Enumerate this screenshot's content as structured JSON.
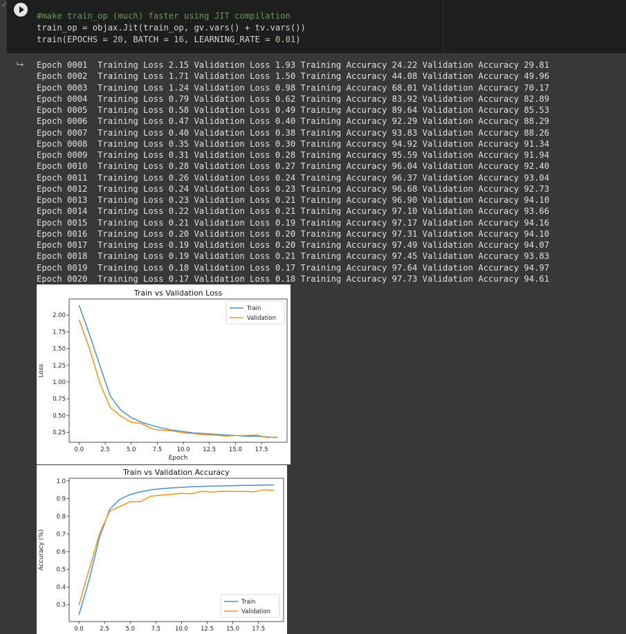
{
  "cell": {
    "code_lines": [
      {
        "type": "comment",
        "text": "#make train_op (much) faster using JIT compilation"
      },
      {
        "type": "code",
        "text": "train_op = objax.Jit(train_op, gv.vars() + tv.vars())"
      },
      {
        "type": "code_call",
        "prefix": "train(EPOCHS = ",
        "e": "20",
        ", BATCH = ": "",
        "b": "16",
        "lr": "0.01"
      }
    ],
    "line1": "#make train_op (much) faster using JIT compilation",
    "line2": "train_op = objax.Jit(train_op, gv.vars() + tv.vars())",
    "line3_a": "train(EPOCHS = ",
    "line3_b": "20",
    "line3_c": ", BATCH = ",
    "line3_d": "16",
    "line3_e": ", LEARNING_RATE = ",
    "line3_f": "0.01",
    "line3_g": ")"
  },
  "output": {
    "log": [
      "Epoch 0001  Training Loss 2.15 Validation Loss 1.93 Training Accuracy 24.22 Validation Accuracy 29.81",
      "Epoch 0002  Training Loss 1.71 Validation Loss 1.50 Training Accuracy 44.08 Validation Accuracy 49.96",
      "Epoch 0003  Training Loss 1.24 Validation Loss 0.98 Training Accuracy 68.01 Validation Accuracy 70.17",
      "Epoch 0004  Training Loss 0.79 Validation Loss 0.62 Training Accuracy 83.92 Validation Accuracy 82.89",
      "Epoch 0005  Training Loss 0.58 Validation Loss 0.49 Training Accuracy 89.64 Validation Accuracy 85.53",
      "Epoch 0006  Training Loss 0.47 Validation Loss 0.40 Training Accuracy 92.29 Validation Accuracy 88.29",
      "Epoch 0007  Training Loss 0.40 Validation Loss 0.38 Training Accuracy 93.83 Validation Accuracy 88.26",
      "Epoch 0008  Training Loss 0.35 Validation Loss 0.30 Training Accuracy 94.92 Validation Accuracy 91.34",
      "Epoch 0009  Training Loss 0.31 Validation Loss 0.28 Training Accuracy 95.59 Validation Accuracy 91.94",
      "Epoch 0010  Training Loss 0.28 Validation Loss 0.27 Training Accuracy 96.04 Validation Accuracy 92.40",
      "Epoch 0011  Training Loss 0.26 Validation Loss 0.24 Training Accuracy 96.37 Validation Accuracy 93.04",
      "Epoch 0012  Training Loss 0.24 Validation Loss 0.23 Training Accuracy 96.68 Validation Accuracy 92.73",
      "Epoch 0013  Training Loss 0.23 Validation Loss 0.21 Training Accuracy 96.90 Validation Accuracy 94.10",
      "Epoch 0014  Training Loss 0.22 Validation Loss 0.21 Training Accuracy 97.10 Validation Accuracy 93.66",
      "Epoch 0015  Training Loss 0.21 Validation Loss 0.19 Training Accuracy 97.17 Validation Accuracy 94.16",
      "Epoch 0016  Training Loss 0.20 Validation Loss 0.20 Training Accuracy 97.31 Validation Accuracy 94.10",
      "Epoch 0017  Training Loss 0.19 Validation Loss 0.20 Training Accuracy 97.49 Validation Accuracy 94.07",
      "Epoch 0018  Training Loss 0.19 Validation Loss 0.21 Training Accuracy 97.45 Validation Accuracy 93.83",
      "Epoch 0019  Training Loss 0.18 Validation Loss 0.17 Training Accuracy 97.64 Validation Accuracy 94.97",
      "Epoch 0020  Training Loss 0.17 Validation Loss 0.18 Training Accuracy 97.73 Validation Accuracy 94.61"
    ]
  },
  "colors": {
    "train": "#4c8fc9",
    "validation": "#f0931e"
  },
  "icons": {
    "run": "play-icon",
    "status": "check-icon",
    "output": "output-arrow-icon"
  },
  "chart_data": [
    {
      "type": "line",
      "title": "Train vs Validation Loss",
      "xlabel": "Epoch",
      "ylabel": "Loss",
      "x": [
        0,
        1,
        2,
        3,
        4,
        5,
        6,
        7,
        8,
        9,
        10,
        11,
        12,
        13,
        14,
        15,
        16,
        17,
        18,
        19
      ],
      "xticks": [
        "0.0",
        "2.5",
        "5.0",
        "7.5",
        "10.0",
        "12.5",
        "15.0",
        "17.5"
      ],
      "yticks": [
        "0.25",
        "0.50",
        "0.75",
        "1.00",
        "1.25",
        "1.50",
        "1.75",
        "2.00"
      ],
      "ylim": [
        0.1,
        2.24
      ],
      "xlim": [
        -0.95,
        19.95
      ],
      "legend": "top-right",
      "series": [
        {
          "name": "Train",
          "values": [
            2.15,
            1.71,
            1.24,
            0.79,
            0.58,
            0.47,
            0.4,
            0.35,
            0.31,
            0.28,
            0.26,
            0.24,
            0.23,
            0.22,
            0.21,
            0.2,
            0.19,
            0.19,
            0.18,
            0.17
          ]
        },
        {
          "name": "Validation",
          "values": [
            1.93,
            1.5,
            0.98,
            0.62,
            0.49,
            0.4,
            0.38,
            0.3,
            0.28,
            0.27,
            0.24,
            0.23,
            0.21,
            0.21,
            0.19,
            0.2,
            0.2,
            0.21,
            0.17,
            0.18
          ]
        }
      ]
    },
    {
      "type": "line",
      "title": "Train vs Validation Accuracy",
      "xlabel": "",
      "ylabel": "Accuracy (%)",
      "x": [
        0,
        1,
        2,
        3,
        4,
        5,
        6,
        7,
        8,
        9,
        10,
        11,
        12,
        13,
        14,
        15,
        16,
        17,
        18,
        19
      ],
      "xticks": [
        "0.0",
        "2.5",
        "5.0",
        "7.5",
        "10.0",
        "12.5",
        "15.0",
        "17.5"
      ],
      "yticks": [
        "0.3",
        "0.4",
        "0.5",
        "0.6",
        "0.7",
        "0.8",
        "0.9",
        "1.0"
      ],
      "ylim": [
        0.205,
        1.015
      ],
      "xlim": [
        -0.95,
        19.95
      ],
      "legend": "bottom-right",
      "series": [
        {
          "name": "Train",
          "values": [
            0.2422,
            0.4408,
            0.6801,
            0.8392,
            0.8964,
            0.9229,
            0.9383,
            0.9492,
            0.9559,
            0.9604,
            0.9637,
            0.9668,
            0.969,
            0.971,
            0.9717,
            0.9731,
            0.9749,
            0.9745,
            0.9764,
            0.9773
          ]
        },
        {
          "name": "Validation",
          "values": [
            0.2981,
            0.4996,
            0.7017,
            0.8289,
            0.8553,
            0.8829,
            0.8826,
            0.9134,
            0.9194,
            0.924,
            0.9304,
            0.9273,
            0.941,
            0.9366,
            0.9416,
            0.941,
            0.9407,
            0.9383,
            0.9497,
            0.9461
          ]
        }
      ]
    }
  ]
}
